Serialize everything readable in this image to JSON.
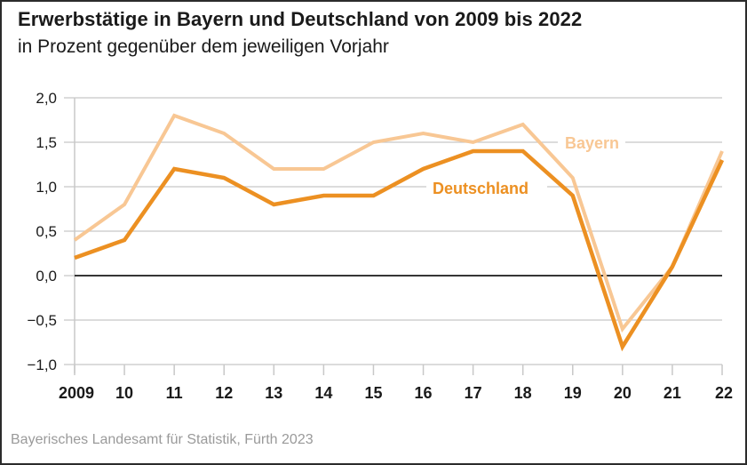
{
  "chart_data": {
    "type": "line",
    "title": "Erwerbstätige in Bayern und Deutschland von 2009 bis 2022",
    "subtitle": "in Prozent gegenüber dem jeweiligen Vorjahr",
    "xlabel": "",
    "ylabel": "",
    "x": [
      "2009",
      "10",
      "11",
      "12",
      "13",
      "14",
      "15",
      "16",
      "17",
      "18",
      "19",
      "20",
      "21",
      "22"
    ],
    "ylim": [
      -1.0,
      2.0
    ],
    "yticks": [
      2.0,
      1.5,
      1.0,
      0.5,
      0.0,
      -0.5,
      -1.0
    ],
    "ytick_labels": [
      "2,0",
      "1,5",
      "1,0",
      "0,5",
      "0,0",
      "−0,5",
      "−1,0"
    ],
    "grid": true,
    "legend": "inline-labels",
    "series": [
      {
        "name": "Bayern",
        "color": "#f8c794",
        "values": [
          0.4,
          0.8,
          1.8,
          1.6,
          1.2,
          1.2,
          1.5,
          1.6,
          1.5,
          1.7,
          1.1,
          -0.6,
          0.1,
          1.4
        ]
      },
      {
        "name": "Deutschland",
        "color": "#ec9022",
        "values": [
          0.2,
          0.4,
          1.2,
          1.1,
          0.8,
          0.9,
          0.9,
          1.2,
          1.4,
          1.4,
          0.9,
          -0.8,
          0.1,
          1.3
        ]
      }
    ],
    "source": "Bayerisches Landesamt für Statistik, Fürth 2023"
  },
  "colors": {
    "grid": "#c8c8c8",
    "zero_line": "#1a1a1a",
    "axis_text": "#1a1a1a",
    "source_text": "#9a9a9a"
  }
}
